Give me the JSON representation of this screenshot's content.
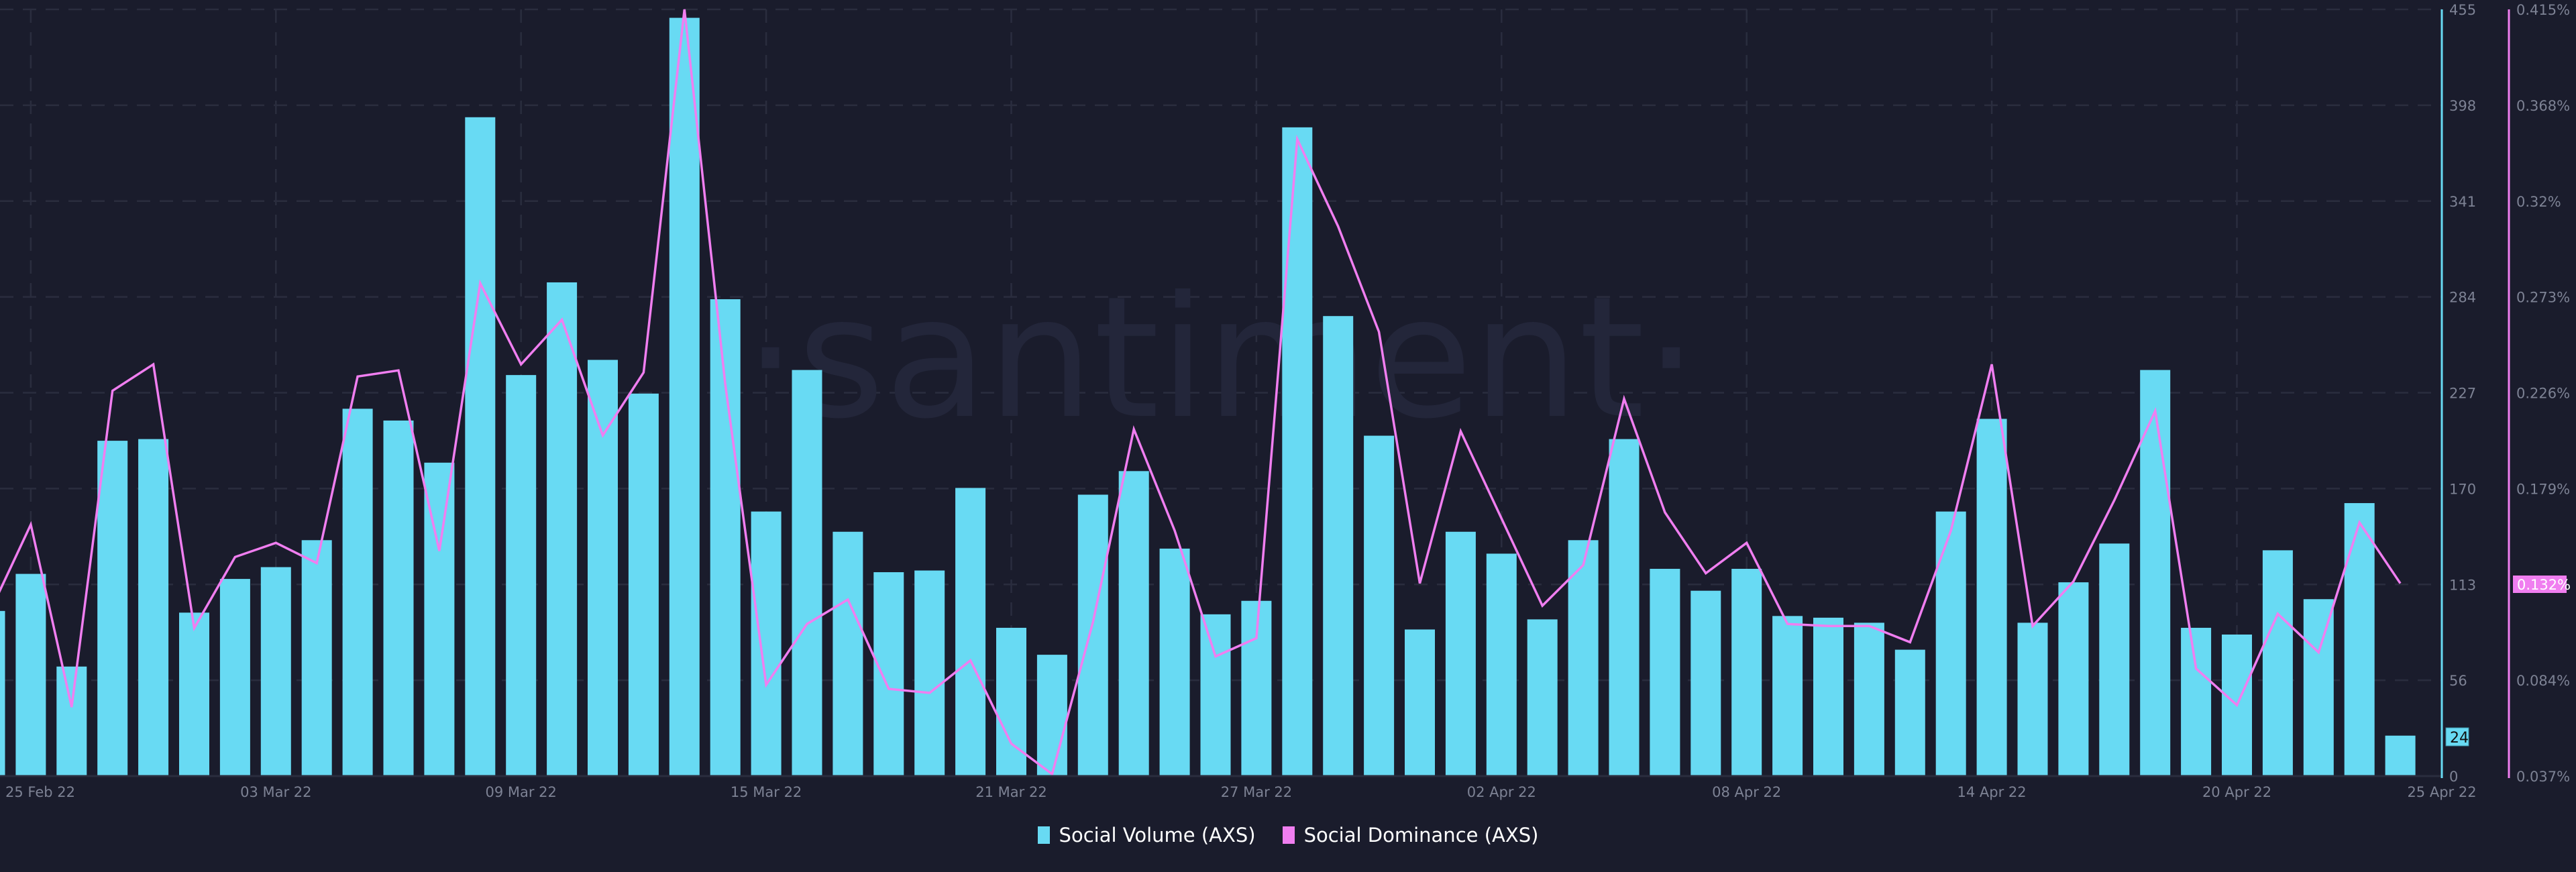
{
  "watermark": "·santiment·",
  "legend": {
    "items": [
      {
        "label": "Social Volume (AXS)",
        "color": "#68daf3"
      },
      {
        "label": "Social Dominance (AXS)",
        "color": "#f07ef0"
      }
    ]
  },
  "axes": {
    "left_ticks": [
      "455",
      "398",
      "341",
      "284",
      "227",
      "170",
      "113",
      "56",
      "0"
    ],
    "right_ticks": [
      "0.415%",
      "0.368%",
      "0.32%",
      "0.273%",
      "0.226%",
      "0.179%",
      "0.132%",
      "0.084%",
      "0.037%"
    ],
    "x_ticks": [
      "25 Feb 22",
      "03 Mar 22",
      "09 Mar 22",
      "15 Mar 22",
      "21 Mar 22",
      "27 Mar 22",
      "02 Apr 22",
      "08 Apr 22",
      "14 Apr 22",
      "20 Apr 22",
      "25 Apr 22"
    ],
    "volume_marker": "24",
    "dominance_marker": "0.132%"
  },
  "colors": {
    "background": "#1a1c2c",
    "volume": "#68daf3",
    "dominance": "#f07ef0",
    "grid": "#2a2d3e",
    "tick_text": "#7d8294"
  },
  "chart_data": {
    "type": "bar",
    "title": "",
    "xlabel": "",
    "ylabel": "",
    "x_range": [
      "24 Feb 22",
      "25 Apr 22"
    ],
    "ylim": [
      0,
      455
    ],
    "ylim_right": [
      0.037,
      0.415
    ],
    "grid": true,
    "legend_position": "bottom",
    "series": [
      {
        "name": "Social Volume (AXS)",
        "type": "bar",
        "axis": "left",
        "values": [
          98,
          120,
          65,
          199,
          200,
          97,
          117,
          124,
          140,
          218,
          211,
          186,
          391,
          238,
          293,
          247,
          227,
          450,
          283,
          157,
          241,
          145,
          121,
          122,
          171,
          88,
          72,
          167,
          181,
          135,
          96,
          104,
          385,
          273,
          202,
          87,
          145,
          132,
          93,
          140,
          200,
          123,
          110,
          123,
          95,
          94,
          91,
          75,
          157,
          212,
          91,
          115,
          138,
          241,
          88,
          84,
          134,
          105,
          162,
          24
        ]
      },
      {
        "name": "Social Dominance (AXS)",
        "type": "line",
        "axis": "right",
        "unit": "%",
        "values": [
          0.118,
          0.161,
          0.071,
          0.227,
          0.24,
          0.11,
          0.145,
          0.152,
          0.142,
          0.234,
          0.237,
          0.148,
          0.28,
          0.24,
          0.262,
          0.205,
          0.236,
          0.415,
          0.23,
          0.082,
          0.112,
          0.124,
          0.08,
          0.078,
          0.094,
          0.053,
          0.038,
          0.113,
          0.208,
          0.158,
          0.096,
          0.105,
          0.351,
          0.308,
          0.256,
          0.132,
          0.207,
          0.164,
          0.121,
          0.141,
          0.223,
          0.167,
          0.137,
          0.152,
          0.112,
          0.111,
          0.111,
          0.103,
          0.158,
          0.24,
          0.111,
          0.133,
          0.173,
          0.217,
          0.09,
          0.072,
          0.117,
          0.098,
          0.162,
          0.132
        ]
      }
    ]
  }
}
